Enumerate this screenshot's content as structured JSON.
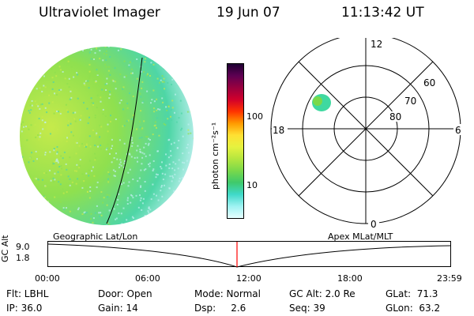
{
  "header": {
    "title": "Ultraviolet Imager",
    "date": "19 Jun 07",
    "time": "11:13:42 UT"
  },
  "colorbar": {
    "unit_label": "photon cm⁻²s⁻¹",
    "ticks": [
      "100",
      "10"
    ],
    "stops": [
      "#e6ffff",
      "#9ef2f2",
      "#3fd9c9",
      "#3fc96b",
      "#7ad94a",
      "#b5e63f",
      "#e6f23f",
      "#ffe033",
      "#ff9900",
      "#ff3300",
      "#d1002b",
      "#99003f",
      "#5e0052",
      "#1e0033"
    ]
  },
  "image_colors": {
    "bright": "#c6ea4b",
    "mid": "#8fe04f",
    "dim": "#4ed6a6",
    "faint": "#bff0f0"
  },
  "polar": {
    "mlt_labels": [
      "12",
      "18",
      "6",
      "0"
    ],
    "lat_labels": [
      "60",
      "70",
      "80"
    ]
  },
  "alt_plot": {
    "ylabel": "GC Alt",
    "yticks": [
      "9.0",
      "1.8"
    ],
    "left_label": "Geographic Lat/Lon",
    "right_label": "Apex  MLat/MLT",
    "xticks": [
      "00:00",
      "06:00",
      "12:00",
      "18:00",
      "23:59"
    ],
    "marker_time": "11:13:42",
    "marker_color": "#ff0000"
  },
  "footer": {
    "col1": [
      "Flt: LBHL",
      "IP: 36.0"
    ],
    "col2": [
      "Door: Open",
      "Gain: 14"
    ],
    "col3": [
      "Mode: Normal",
      "Dsp:     2.6"
    ],
    "col4": [
      "GC Alt: 2.0 Re",
      "Seq: 39"
    ],
    "col5": [
      "GLat:  71.3",
      "GLon:  63.2"
    ]
  }
}
